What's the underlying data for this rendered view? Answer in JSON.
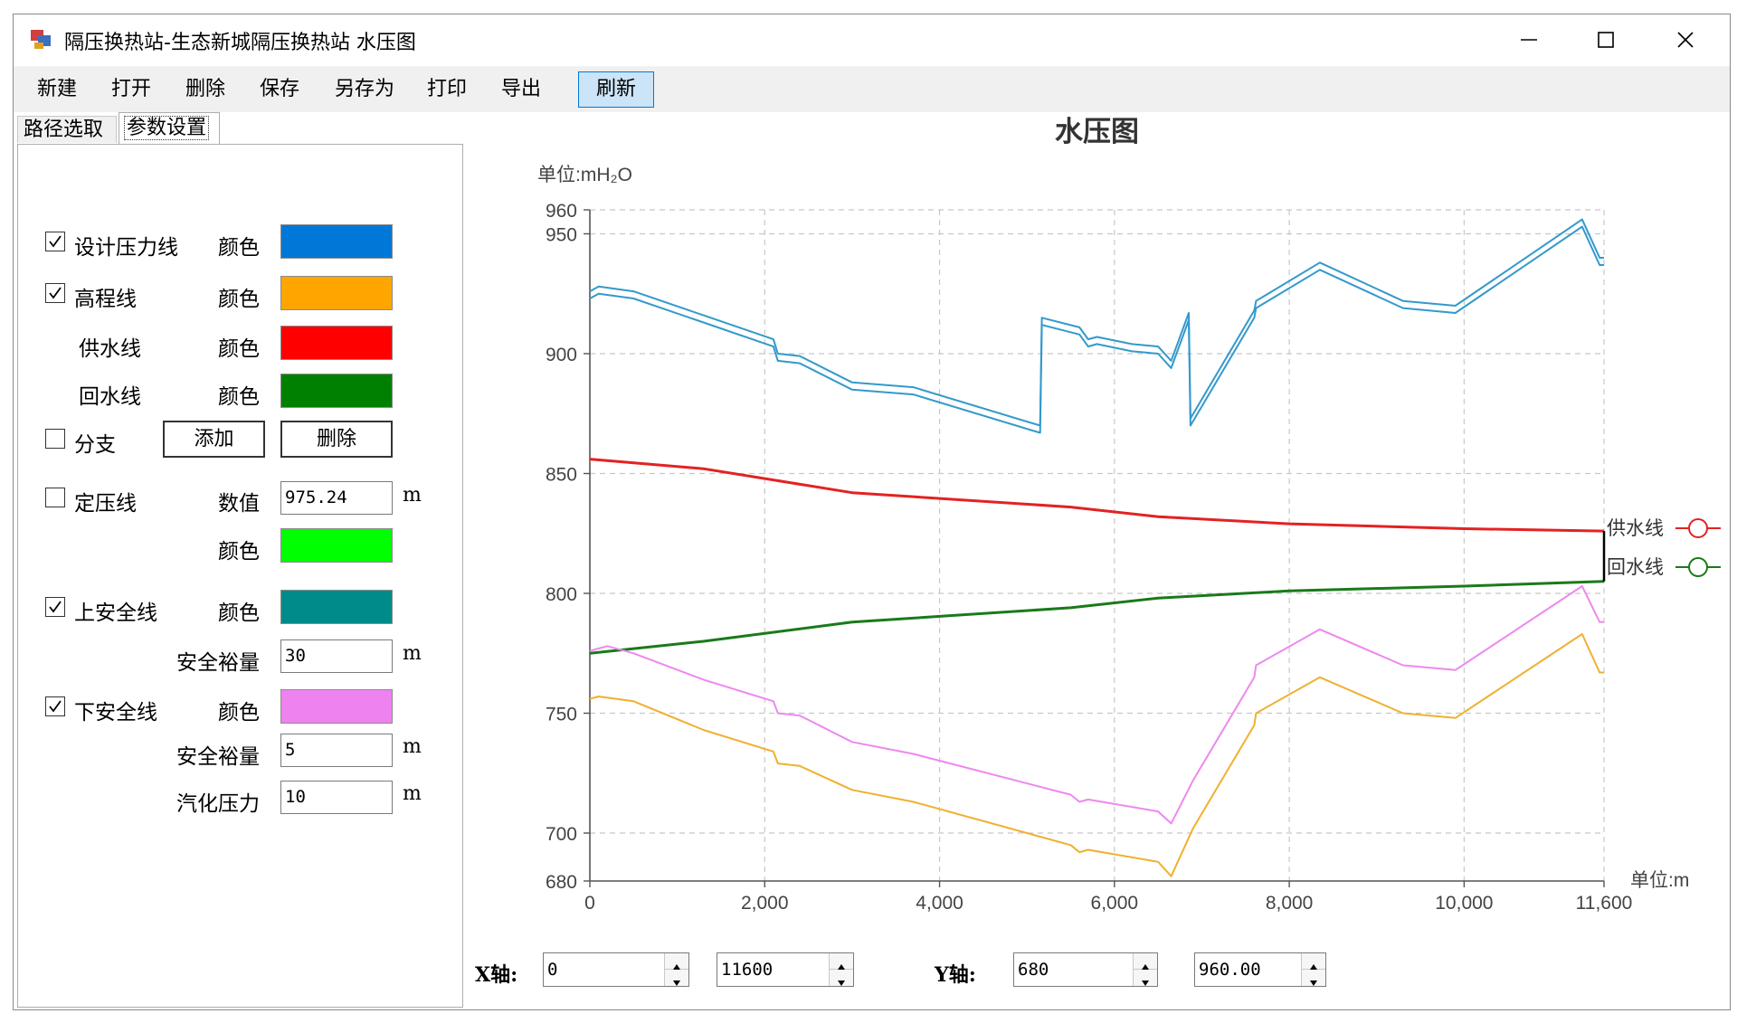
{
  "window": {
    "title": "隔压换热站-生态新城隔压换热站 水压图"
  },
  "menu": [
    "新建",
    "打开",
    "删除",
    "保存",
    "另存为",
    "打印",
    "导出",
    "刷新"
  ],
  "tabs": [
    "路径选取",
    "参数设置"
  ],
  "settings": {
    "color_label": "颜色",
    "value_label": "数值",
    "margin_label": "安全裕量",
    "vapor_label": "汽化压力",
    "unit_m": "m",
    "design_line": {
      "label": "设计压力线",
      "checked": true,
      "color": "#0078d7"
    },
    "elevation_line": {
      "label": "高程线",
      "checked": true,
      "color": "#ffa500"
    },
    "supply_line": {
      "label": "供水线",
      "color": "#ff0000"
    },
    "return_line": {
      "label": "回水线",
      "color": "#008000"
    },
    "branch": {
      "label": "分支",
      "checked": false,
      "add_label": "添加",
      "delete_label": "删除"
    },
    "fixed_line": {
      "label": "定压线",
      "checked": false,
      "value": "975.24",
      "color": "#00ff00"
    },
    "upper_safe": {
      "label": "上安全线",
      "checked": true,
      "color": "#008b8b",
      "margin": "30"
    },
    "lower_safe": {
      "label": "下安全线",
      "checked": true,
      "color": "#ee82ee",
      "margin": "5",
      "vapor": "10"
    }
  },
  "axis_controls": {
    "x_label": "X轴:",
    "x_min": "0",
    "x_max": "11600",
    "y_label": "Y轴:",
    "y_min": "680",
    "y_max": "960.00"
  },
  "chart_data": {
    "type": "line",
    "title": "水压图",
    "ylabel": "单位:mH₂O",
    "xlabel": "单位:m",
    "xlim": [
      0,
      11600
    ],
    "ylim": [
      680,
      960
    ],
    "x_ticks": [
      0,
      2000,
      4000,
      6000,
      8000,
      10000,
      11600
    ],
    "x_tick_labels": [
      "0",
      "2,000",
      "4,000",
      "6,000",
      "8,000",
      "10,000",
      "11,600"
    ],
    "y_ticks": [
      680,
      700,
      750,
      800,
      850,
      900,
      950,
      960
    ],
    "grid": true,
    "legend_position": "right",
    "series": [
      {
        "name": "供水线",
        "color": "#e32222",
        "legend": true,
        "x": [
          0,
          1300,
          3000,
          5500,
          6500,
          8000,
          10000,
          11600
        ],
        "y": [
          856,
          852,
          842,
          836,
          832,
          829,
          827,
          826
        ]
      },
      {
        "name": "回水线",
        "color": "#1a7a1a",
        "legend": true,
        "x": [
          0,
          1300,
          3000,
          5500,
          6500,
          8000,
          10000,
          11600
        ],
        "y": [
          775,
          780,
          788,
          794,
          798,
          801,
          803,
          805
        ]
      },
      {
        "color": "#3399cc",
        "x": [
          0,
          100,
          500,
          1300,
          2100,
          2150,
          2400,
          3000,
          3700,
          5150,
          5170,
          5600,
          5700,
          5800,
          6200,
          6500,
          6650,
          6850,
          6870,
          7600,
          7620,
          8350,
          9300,
          9900,
          11350,
          11550,
          11600
        ],
        "y": [
          926,
          928,
          926,
          916,
          906,
          900,
          899,
          888,
          886,
          870,
          915,
          911,
          906,
          907,
          904,
          903,
          897,
          917,
          873,
          918,
          922,
          938,
          922,
          920,
          956,
          940,
          940
        ]
      },
      {
        "color": "#3399cc",
        "x": [
          0,
          100,
          500,
          1300,
          2100,
          2150,
          2400,
          3000,
          3700,
          5150,
          5170,
          5600,
          5700,
          5800,
          6200,
          6500,
          6650,
          6850,
          6870,
          7600,
          7620,
          8350,
          9300,
          9900,
          11350,
          11550,
          11600
        ],
        "y": [
          923,
          925,
          923,
          913,
          903,
          897,
          896,
          885,
          883,
          867,
          912,
          908,
          903,
          904,
          901,
          900,
          894,
          914,
          870,
          915,
          919,
          935,
          919,
          917,
          953,
          937,
          937
        ]
      },
      {
        "color": "#ee88ee",
        "x": [
          0,
          200,
          500,
          1300,
          2100,
          2150,
          2400,
          3000,
          3700,
          5500,
          5600,
          5700,
          6500,
          6650,
          6900,
          7600,
          7620,
          8350,
          9300,
          9900,
          11350,
          11550,
          11600
        ],
        "y": [
          776,
          778,
          775,
          764,
          755,
          750,
          749,
          738,
          733,
          716,
          713,
          714,
          709,
          704,
          722,
          765,
          770,
          785,
          770,
          768,
          803,
          788,
          788
        ]
      },
      {
        "color": "#f0b030",
        "x": [
          0,
          100,
          500,
          1300,
          2100,
          2150,
          2400,
          3000,
          3700,
          5500,
          5600,
          5700,
          6500,
          6650,
          6900,
          7600,
          7620,
          8350,
          9300,
          9900,
          11350,
          11550,
          11600
        ],
        "y": [
          756,
          757,
          755,
          743,
          734,
          729,
          728,
          718,
          713,
          695,
          692,
          693,
          688,
          682,
          702,
          745,
          750,
          765,
          750,
          748,
          783,
          767,
          767
        ]
      }
    ]
  }
}
